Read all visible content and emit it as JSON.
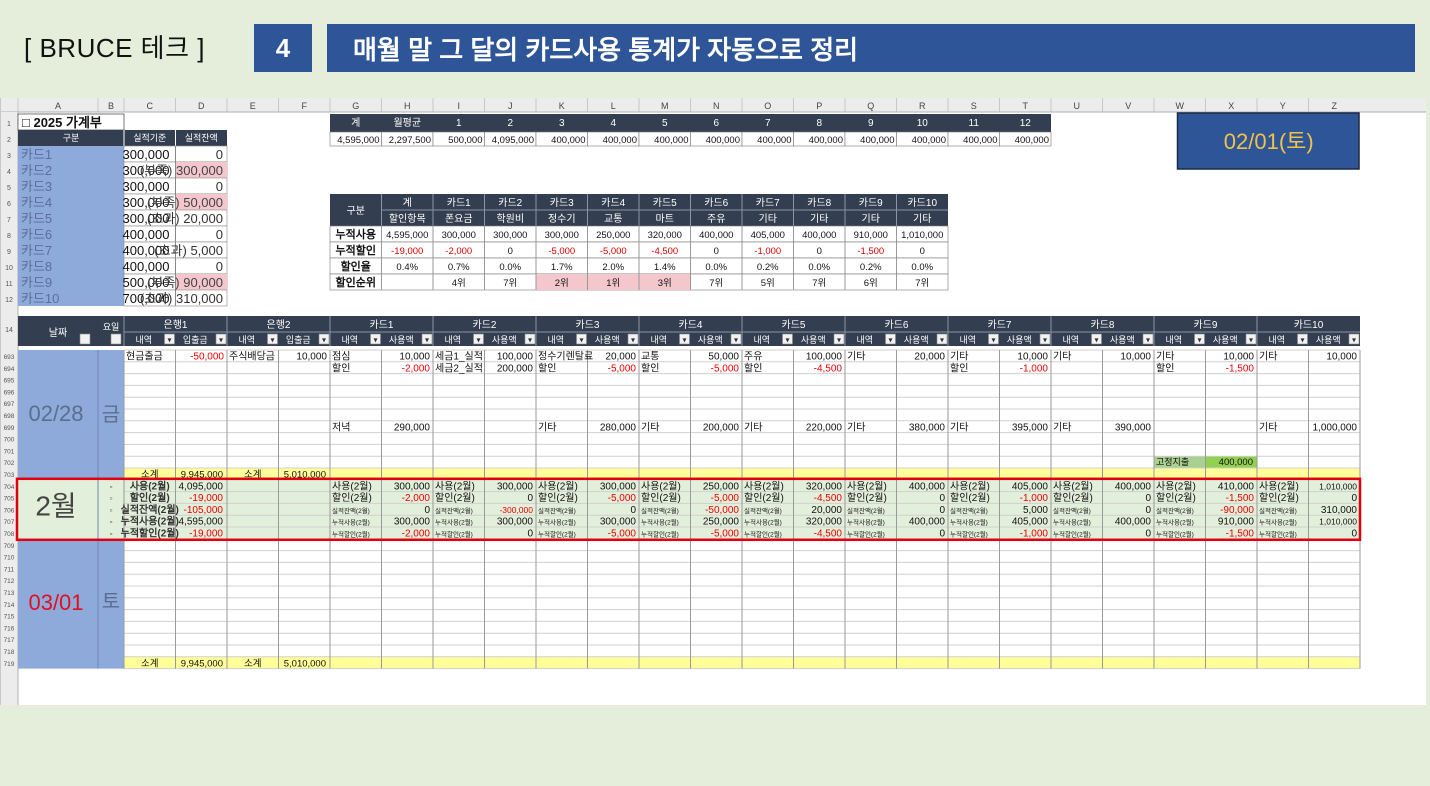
{
  "header": {
    "brand": "[ BRUCE 테크 ]",
    "step_number": "4",
    "title": "매월 말 그 달의 카드사용 통계가 자동으로 정리"
  },
  "sheet": {
    "columns": [
      "A",
      "B",
      "C",
      "D",
      "E",
      "F",
      "G",
      "H",
      "I",
      "J",
      "K",
      "L",
      "M",
      "N",
      "O",
      "P",
      "Q",
      "R",
      "S",
      "T",
      "U",
      "V",
      "W",
      "X",
      "Y",
      "Z"
    ],
    "row_numbers_top": [
      "1",
      "2",
      "3",
      "4",
      "5",
      "6",
      "7",
      "8",
      "9",
      "10",
      "11",
      "12"
    ],
    "row_numbers_bottom": [
      "14",
      "693",
      "694",
      "695",
      "696",
      "697",
      "698",
      "699",
      "700",
      "701",
      "702",
      "703",
      "704",
      "705",
      "706",
      "707",
      "708",
      "709",
      "710",
      "711",
      "712",
      "713",
      "714",
      "715",
      "716",
      "717",
      "718",
      "719"
    ],
    "ledger_title": "□ 2025 가계부",
    "date_cell": "02/01(토)",
    "card_table": {
      "headers": [
        "구분",
        "실적기준",
        "실적잔액"
      ],
      "rows": [
        {
          "card": "카드1",
          "base": "300,000",
          "balance": "0",
          "flag": ""
        },
        {
          "card": "카드2",
          "base": "300,000",
          "balance": "(부족) 300,000",
          "flag": "short"
        },
        {
          "card": "카드3",
          "base": "300,000",
          "balance": "0",
          "flag": ""
        },
        {
          "card": "카드4",
          "base": "300,000",
          "balance": "(부족) 50,000",
          "flag": "short"
        },
        {
          "card": "카드5",
          "base": "300,000",
          "balance": "(초과) 20,000",
          "flag": ""
        },
        {
          "card": "카드6",
          "base": "400,000",
          "balance": "0",
          "flag": ""
        },
        {
          "card": "카드7",
          "base": "400,000",
          "balance": "(초과) 5,000",
          "flag": ""
        },
        {
          "card": "카드8",
          "base": "400,000",
          "balance": "0",
          "flag": ""
        },
        {
          "card": "카드9",
          "base": "500,000",
          "balance": "(부족) 90,000",
          "flag": "short"
        },
        {
          "card": "카드10",
          "base": "700,000",
          "balance": "(초과) 310,000",
          "flag": ""
        }
      ]
    },
    "monthly": {
      "headers": [
        "계",
        "월평균",
        "1",
        "2",
        "3",
        "4",
        "5",
        "6",
        "7",
        "8",
        "9",
        "10",
        "11",
        "12"
      ],
      "values": [
        "4,595,000",
        "2,297,500",
        "500,000",
        "4,095,000",
        "400,000",
        "400,000",
        "400,000",
        "400,000",
        "400,000",
        "400,000",
        "400,000",
        "400,000",
        "400,000",
        "400,000"
      ]
    },
    "discount": {
      "header1": [
        "구분",
        "계",
        "카드1",
        "카드2",
        "카드3",
        "카드4",
        "카드5",
        "카드6",
        "카드7",
        "카드8",
        "카드9",
        "카드10"
      ],
      "header2": [
        "할인항목",
        "폰요금",
        "학원비",
        "정수기",
        "교통",
        "마트",
        "주유",
        "기타",
        "기타",
        "기타",
        "기타"
      ],
      "rows": [
        {
          "label": "누적사용",
          "values": [
            "4,595,000",
            "300,000",
            "300,000",
            "300,000",
            "250,000",
            "320,000",
            "400,000",
            "405,000",
            "400,000",
            "910,000",
            "1,010,000"
          ]
        },
        {
          "label": "누적할인",
          "values": [
            "-19,000",
            "-2,000",
            "0",
            "-5,000",
            "-5,000",
            "-4,500",
            "0",
            "-1,000",
            "0",
            "-1,500",
            "0"
          ]
        },
        {
          "label": "할인율",
          "values": [
            "0.4%",
            "0.7%",
            "0.0%",
            "1.7%",
            "2.0%",
            "1.4%",
            "0.0%",
            "0.2%",
            "0.0%",
            "0.2%",
            "0.0%"
          ]
        },
        {
          "label": "할인순위",
          "values": [
            "",
            "4위",
            "7위",
            "2위",
            "1위",
            "3위",
            "7위",
            "5위",
            "7위",
            "6위",
            "7위"
          ]
        }
      ]
    },
    "log": {
      "date_header": "날짜",
      "day_header": "요일",
      "groups": [
        "은행1",
        "은행2",
        "카드1",
        "카드2",
        "카드3",
        "카드4",
        "카드5",
        "카드6",
        "카드7",
        "카드8",
        "카드9",
        "카드10"
      ],
      "subheaders": [
        "내역",
        "입출금",
        "내역",
        "입출금",
        "내역",
        "사용액",
        "내역",
        "사용액",
        "내역",
        "사용액",
        "내역",
        "사용액",
        "내역",
        "사용액",
        "내역",
        "사용액",
        "내역",
        "사용액",
        "내역",
        "사용액",
        "내역",
        "사용액",
        "내역",
        "사용액"
      ],
      "day1": {
        "date": "02/28",
        "weekday": "금"
      },
      "day2": {
        "date": "03/01",
        "weekday": "토"
      },
      "month_label": "2월",
      "summary_marker": "▫",
      "subtotal_label": "소계",
      "subtotal_bank1": "9,945,000",
      "subtotal_bank2": "5,010,000",
      "fixed_label": "고정지출",
      "fixed_value": "400,000",
      "entries": [
        {
          "row": 0,
          "col": "C",
          "text": "현금출금"
        },
        {
          "row": 0,
          "col": "D",
          "text": "-50,000",
          "red": true
        },
        {
          "row": 0,
          "col": "E",
          "text": "주식배당금"
        },
        {
          "row": 0,
          "col": "F",
          "text": "10,000"
        },
        {
          "row": 0,
          "col": "G",
          "text": "점심"
        },
        {
          "row": 0,
          "col": "H",
          "text": "10,000"
        },
        {
          "row": 0,
          "col": "I",
          "text": "세금1_실적"
        },
        {
          "row": 0,
          "col": "J",
          "text": "100,000"
        },
        {
          "row": 0,
          "col": "K",
          "text": "정수기렌탈료"
        },
        {
          "row": 0,
          "col": "L",
          "text": "20,000"
        },
        {
          "row": 0,
          "col": "M",
          "text": "교통"
        },
        {
          "row": 0,
          "col": "N",
          "text": "50,000"
        },
        {
          "row": 0,
          "col": "O",
          "text": "주유"
        },
        {
          "row": 0,
          "col": "P",
          "text": "100,000"
        },
        {
          "row": 0,
          "col": "Q",
          "text": "기타"
        },
        {
          "row": 0,
          "col": "R",
          "text": "20,000"
        },
        {
          "row": 0,
          "col": "S",
          "text": "기타"
        },
        {
          "row": 0,
          "col": "T",
          "text": "10,000"
        },
        {
          "row": 0,
          "col": "U",
          "text": "기타"
        },
        {
          "row": 0,
          "col": "V",
          "text": "10,000"
        },
        {
          "row": 0,
          "col": "W",
          "text": "기타"
        },
        {
          "row": 0,
          "col": "X",
          "text": "10,000"
        },
        {
          "row": 0,
          "col": "Y",
          "text": "기타"
        },
        {
          "row": 0,
          "col": "Z",
          "text": "10,000"
        },
        {
          "row": 1,
          "col": "G",
          "text": "할인"
        },
        {
          "row": 1,
          "col": "H",
          "text": "-2,000",
          "red": true
        },
        {
          "row": 1,
          "col": "I",
          "text": "세금2_실적"
        },
        {
          "row": 1,
          "col": "J",
          "text": "200,000"
        },
        {
          "row": 1,
          "col": "K",
          "text": "할인"
        },
        {
          "row": 1,
          "col": "L",
          "text": "-5,000",
          "red": true
        },
        {
          "row": 1,
          "col": "M",
          "text": "할인"
        },
        {
          "row": 1,
          "col": "N",
          "text": "-5,000",
          "red": true
        },
        {
          "row": 1,
          "col": "O",
          "text": "할인"
        },
        {
          "row": 1,
          "col": "P",
          "text": "-4,500",
          "red": true
        },
        {
          "row": 1,
          "col": "S",
          "text": "할인"
        },
        {
          "row": 1,
          "col": "T",
          "text": "-1,000",
          "red": true
        },
        {
          "row": 1,
          "col": "W",
          "text": "할인"
        },
        {
          "row": 1,
          "col": "X",
          "text": "-1,500",
          "red": true
        },
        {
          "row": 6,
          "col": "G",
          "text": "저녁"
        },
        {
          "row": 6,
          "col": "H",
          "text": "290,000"
        },
        {
          "row": 6,
          "col": "K",
          "text": "기타"
        },
        {
          "row": 6,
          "col": "L",
          "text": "280,000"
        },
        {
          "row": 6,
          "col": "M",
          "text": "기타"
        },
        {
          "row": 6,
          "col": "N",
          "text": "200,000"
        },
        {
          "row": 6,
          "col": "O",
          "text": "기타"
        },
        {
          "row": 6,
          "col": "P",
          "text": "220,000"
        },
        {
          "row": 6,
          "col": "Q",
          "text": "기타"
        },
        {
          "row": 6,
          "col": "R",
          "text": "380,000"
        },
        {
          "row": 6,
          "col": "S",
          "text": "기타"
        },
        {
          "row": 6,
          "col": "T",
          "text": "395,000"
        },
        {
          "row": 6,
          "col": "U",
          "text": "기타"
        },
        {
          "row": 6,
          "col": "V",
          "text": "390,000"
        },
        {
          "row": 6,
          "col": "Y",
          "text": "기타"
        },
        {
          "row": 6,
          "col": "Z",
          "text": "1,000,000"
        }
      ],
      "summary": {
        "labels": [
          "사용(2월)",
          "할인(2월)",
          "실적잔액(2월)",
          "누적사용(2월)",
          "누적할인(2월)"
        ],
        "bank_values": [
          "4,095,000",
          "-19,000",
          "-105,000",
          "4,595,000",
          "-19,000"
        ],
        "cards": [
          [
            "300,000",
            "-2,000",
            "0",
            "300,000",
            "-2,000"
          ],
          [
            "300,000",
            "0",
            "-300,000",
            "300,000",
            "0"
          ],
          [
            "300,000",
            "-5,000",
            "0",
            "300,000",
            "-5,000"
          ],
          [
            "250,000",
            "-5,000",
            "-50,000",
            "250,000",
            "-5,000"
          ],
          [
            "320,000",
            "-4,500",
            "20,000",
            "320,000",
            "-4,500"
          ],
          [
            "400,000",
            "0",
            "0",
            "400,000",
            "0"
          ],
          [
            "405,000",
            "-1,000",
            "5,000",
            "405,000",
            "-1,000"
          ],
          [
            "400,000",
            "0",
            "0",
            "400,000",
            "0"
          ],
          [
            "410,000",
            "-1,500",
            "-90,000",
            "910,000",
            "-1,500"
          ],
          [
            "1,010,000",
            "0",
            "310,000",
            "1,010,000",
            "0"
          ]
        ]
      }
    }
  },
  "colors": {
    "title_blue": "#2e5597",
    "header_navy": "#333f50",
    "card_blue": "#8eaadb",
    "pink": "#f4c7cd",
    "summary_green": "#e2efda",
    "subtotal_yellow": "#ffff99",
    "highlight_red": "#e0000f",
    "fixed_green": "#92d050"
  }
}
